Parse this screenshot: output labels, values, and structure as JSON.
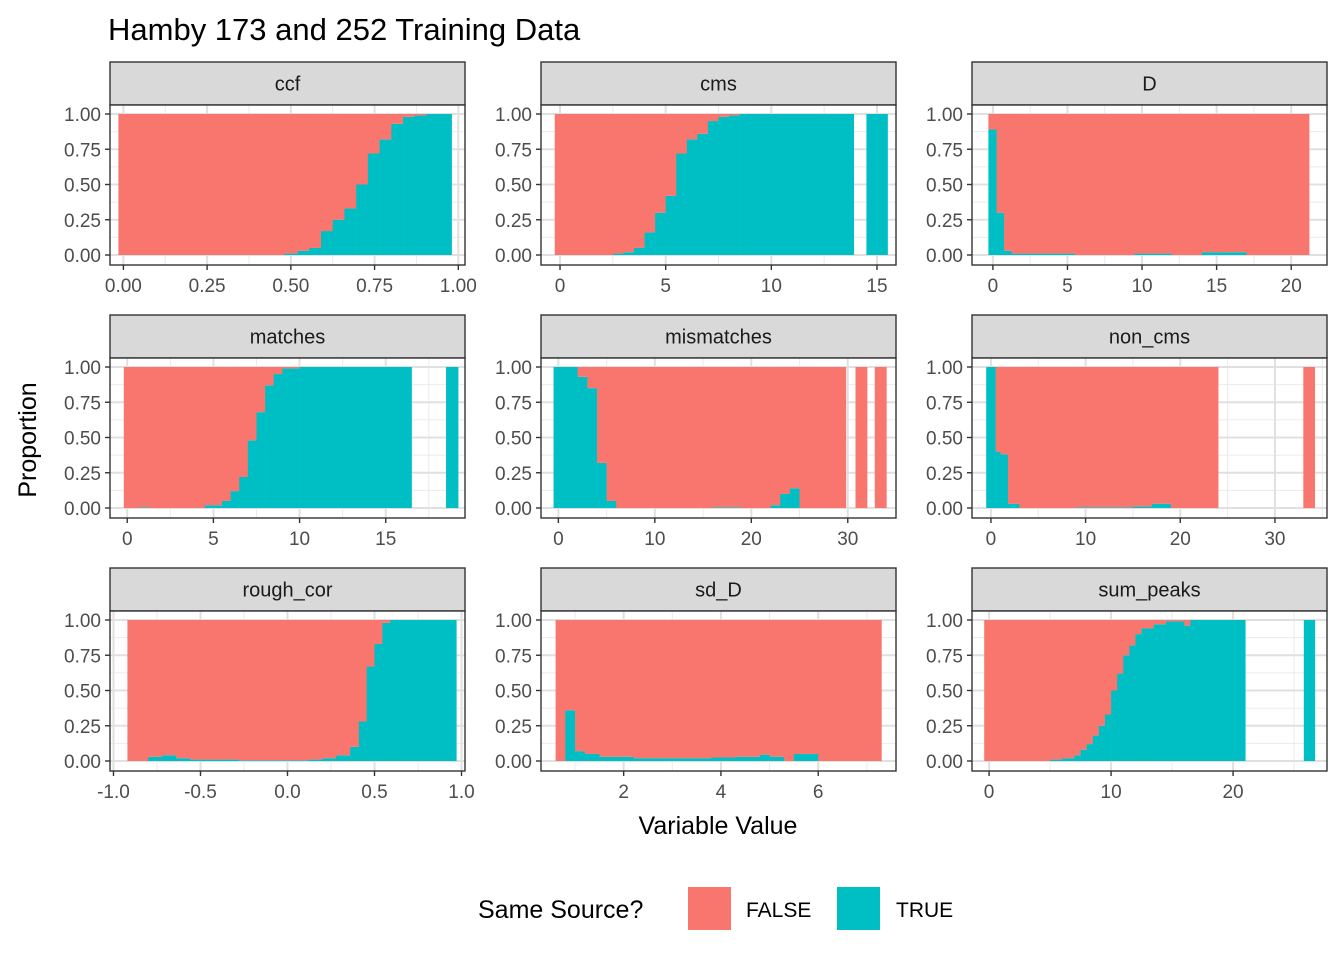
{
  "chart_data": {
    "type": "bar",
    "subtype": "stacked-proportion-histogram-faceted",
    "title": "Hamby 173 and 252 Training Data",
    "xlabel": "Variable Value",
    "ylabel": "Proportion",
    "yticks": [
      "0.00",
      "0.25",
      "0.50",
      "0.75",
      "1.00"
    ],
    "ylim": [
      0,
      1
    ],
    "grid": true,
    "legend": {
      "title": "Same Source?",
      "position": "bottom",
      "entries": [
        {
          "name": "FALSE",
          "color": "#F8766D"
        },
        {
          "name": "TRUE",
          "color": "#00BFC4"
        }
      ]
    },
    "series_colors": {
      "FALSE": "#F8766D",
      "TRUE": "#00BFC4"
    },
    "note_values": "values are the TRUE proportion per bin; FALSE = 1 - TRUE; bins listed as [start, end, true_proportion]",
    "facets": [
      {
        "name": "ccf",
        "xlim": [
          -0.04,
          1.02
        ],
        "xticks": [
          0,
          0.25,
          0.5,
          0.75,
          1.0
        ],
        "xtick_labels": [
          "0.00",
          "0.25",
          "0.50",
          "0.75",
          "1.00"
        ],
        "bins": [
          [
            -0.015,
            0.48,
            0.0
          ],
          [
            0.48,
            0.52,
            0.01
          ],
          [
            0.52,
            0.555,
            0.03
          ],
          [
            0.555,
            0.59,
            0.05
          ],
          [
            0.59,
            0.625,
            0.17
          ],
          [
            0.625,
            0.66,
            0.25
          ],
          [
            0.66,
            0.695,
            0.33
          ],
          [
            0.695,
            0.73,
            0.5
          ],
          [
            0.73,
            0.765,
            0.72
          ],
          [
            0.765,
            0.8,
            0.82
          ],
          [
            0.8,
            0.835,
            0.93
          ],
          [
            0.835,
            0.87,
            0.98
          ],
          [
            0.87,
            0.905,
            0.99
          ],
          [
            0.905,
            0.98,
            1.0
          ]
        ]
      },
      {
        "name": "cms",
        "xlim": [
          -0.9,
          15.9
        ],
        "xticks": [
          0,
          5,
          10,
          15
        ],
        "xtick_labels": [
          "0",
          "5",
          "10",
          "15"
        ],
        "bins": [
          [
            -0.25,
            2.5,
            0.0
          ],
          [
            2.5,
            3.0,
            0.01
          ],
          [
            3.0,
            3.5,
            0.02
          ],
          [
            3.5,
            4.0,
            0.05
          ],
          [
            4.0,
            4.5,
            0.16
          ],
          [
            4.5,
            5.0,
            0.3
          ],
          [
            5.0,
            5.5,
            0.42
          ],
          [
            5.5,
            6.0,
            0.72
          ],
          [
            6.0,
            6.5,
            0.82
          ],
          [
            6.5,
            7.0,
            0.86
          ],
          [
            7.0,
            7.5,
            0.95
          ],
          [
            7.5,
            8.0,
            0.98
          ],
          [
            8.0,
            8.5,
            0.99
          ],
          [
            8.5,
            13.9,
            1.0
          ],
          [
            14.5,
            15.5,
            1.0
          ]
        ]
      },
      {
        "name": "D",
        "xlim": [
          -1.4,
          22.4
        ],
        "xticks": [
          0,
          5,
          10,
          15,
          20
        ],
        "xtick_labels": [
          "0",
          "5",
          "10",
          "15",
          "20"
        ],
        "bins": [
          [
            -0.3,
            0.25,
            0.89
          ],
          [
            0.25,
            0.75,
            0.3
          ],
          [
            0.75,
            1.25,
            0.03
          ],
          [
            1.25,
            5.5,
            0.01
          ],
          [
            5.5,
            9.5,
            0.0
          ],
          [
            9.5,
            12.0,
            0.01
          ],
          [
            12.0,
            14.0,
            0.0
          ],
          [
            14.0,
            17.0,
            0.02
          ],
          [
            17.0,
            21.2,
            0.0
          ]
        ]
      },
      {
        "name": "matches",
        "xlim": [
          -1.0,
          19.6
        ],
        "xticks": [
          0,
          5,
          10,
          15
        ],
        "xtick_labels": [
          "0",
          "5",
          "10",
          "15"
        ],
        "bins": [
          [
            -0.2,
            0.7,
            0.0
          ],
          [
            0.7,
            1.3,
            0.005
          ],
          [
            1.3,
            4.5,
            0.0
          ],
          [
            4.5,
            5.5,
            0.02
          ],
          [
            5.5,
            6.0,
            0.05
          ],
          [
            6.0,
            6.5,
            0.12
          ],
          [
            6.5,
            7.0,
            0.22
          ],
          [
            7.0,
            7.5,
            0.48
          ],
          [
            7.5,
            8.0,
            0.68
          ],
          [
            8.0,
            8.5,
            0.87
          ],
          [
            8.5,
            9.0,
            0.95
          ],
          [
            9.0,
            10.0,
            0.99
          ],
          [
            10.0,
            16.5,
            1.0
          ],
          [
            18.5,
            19.2,
            1.0
          ]
        ]
      },
      {
        "name": "mismatches",
        "xlim": [
          -1.8,
          35.0
        ],
        "xticks": [
          0,
          10,
          20,
          30
        ],
        "xtick_labels": [
          "0",
          "10",
          "20",
          "30"
        ],
        "bins": [
          [
            -0.5,
            2.0,
            1.0
          ],
          [
            2.0,
            3.0,
            0.93
          ],
          [
            3.0,
            4.0,
            0.85
          ],
          [
            4.0,
            5.0,
            0.32
          ],
          [
            5.0,
            6.0,
            0.05
          ],
          [
            6.0,
            16.0,
            0.0
          ],
          [
            16.0,
            19.0,
            0.005
          ],
          [
            19.0,
            22.0,
            0.0
          ],
          [
            22.0,
            23.0,
            0.02
          ],
          [
            23.0,
            24.0,
            0.1
          ],
          [
            24.0,
            25.0,
            0.14
          ],
          [
            25.0,
            29.8,
            0.0
          ],
          [
            30.8,
            32.0,
            0.0
          ],
          [
            32.8,
            34.0,
            0.0
          ]
        ]
      },
      {
        "name": "non_cms",
        "xlim": [
          -2.0,
          35.5
        ],
        "xticks": [
          0,
          10,
          20,
          30
        ],
        "xtick_labels": [
          "0",
          "10",
          "20",
          "30"
        ],
        "bins": [
          [
            -0.5,
            0.5,
            1.0
          ],
          [
            0.5,
            1.0,
            0.4
          ],
          [
            1.0,
            1.8,
            0.38
          ],
          [
            1.8,
            3.0,
            0.03
          ],
          [
            3.0,
            9.0,
            0.0
          ],
          [
            9.0,
            15.0,
            0.005
          ],
          [
            15.0,
            17.0,
            0.01
          ],
          [
            17.0,
            19.0,
            0.03
          ],
          [
            19.0,
            24.0,
            0.0
          ],
          [
            33.0,
            34.2,
            0.0
          ]
        ]
      },
      {
        "name": "rough_cor",
        "xlim": [
          -1.02,
          1.02
        ],
        "xticks": [
          -1.0,
          -0.5,
          0.0,
          0.5,
          1.0
        ],
        "xtick_labels": [
          "-1.0",
          "-0.5",
          "0.0",
          "0.5",
          "1.0"
        ],
        "bins": [
          [
            -0.92,
            -0.8,
            0.0
          ],
          [
            -0.8,
            -0.72,
            0.03
          ],
          [
            -0.72,
            -0.64,
            0.04
          ],
          [
            -0.64,
            -0.56,
            0.02
          ],
          [
            -0.56,
            -0.48,
            0.01
          ],
          [
            -0.48,
            -0.28,
            0.01
          ],
          [
            -0.28,
            0.12,
            0.005
          ],
          [
            0.12,
            0.2,
            0.01
          ],
          [
            0.2,
            0.28,
            0.02
          ],
          [
            0.28,
            0.36,
            0.04
          ],
          [
            0.36,
            0.41,
            0.1
          ],
          [
            0.41,
            0.455,
            0.28
          ],
          [
            0.455,
            0.5,
            0.67
          ],
          [
            0.5,
            0.545,
            0.83
          ],
          [
            0.545,
            0.59,
            0.98
          ],
          [
            0.59,
            0.97,
            1.0
          ]
        ]
      },
      {
        "name": "sd_D",
        "xlim": [
          0.3,
          7.6
        ],
        "xticks": [
          2,
          4,
          6
        ],
        "xtick_labels": [
          "2",
          "4",
          "6"
        ],
        "bins": [
          [
            0.6,
            0.8,
            0.0
          ],
          [
            0.8,
            1.0,
            0.36
          ],
          [
            1.0,
            1.2,
            0.07
          ],
          [
            1.2,
            1.5,
            0.05
          ],
          [
            1.5,
            2.2,
            0.03
          ],
          [
            2.2,
            3.8,
            0.02
          ],
          [
            3.8,
            4.3,
            0.025
          ],
          [
            4.3,
            4.8,
            0.03
          ],
          [
            4.8,
            5.0,
            0.045
          ],
          [
            5.0,
            5.3,
            0.03
          ],
          [
            5.3,
            5.5,
            0.0
          ],
          [
            5.5,
            6.0,
            0.05
          ],
          [
            6.0,
            7.3,
            0.0
          ]
        ]
      },
      {
        "name": "sum_peaks",
        "xlim": [
          -1.4,
          27.7
        ],
        "xticks": [
          0,
          10,
          20
        ],
        "xtick_labels": [
          "0",
          "10",
          "20"
        ],
        "bins": [
          [
            -0.4,
            5.0,
            0.0
          ],
          [
            5.0,
            6.0,
            0.01
          ],
          [
            6.0,
            7.0,
            0.02
          ],
          [
            7.0,
            7.5,
            0.04
          ],
          [
            7.5,
            8.0,
            0.08
          ],
          [
            8.0,
            8.5,
            0.12
          ],
          [
            8.5,
            9.0,
            0.18
          ],
          [
            9.0,
            9.5,
            0.25
          ],
          [
            9.5,
            10.0,
            0.33
          ],
          [
            10.0,
            10.5,
            0.5
          ],
          [
            10.5,
            11.0,
            0.62
          ],
          [
            11.0,
            11.5,
            0.75
          ],
          [
            11.5,
            12.0,
            0.82
          ],
          [
            12.0,
            12.5,
            0.9
          ],
          [
            12.5,
            13.5,
            0.94
          ],
          [
            13.5,
            14.5,
            0.97
          ],
          [
            14.5,
            16.0,
            0.99
          ],
          [
            16.0,
            16.5,
            0.96
          ],
          [
            16.5,
            21.0,
            1.0
          ],
          [
            25.8,
            26.7,
            1.0
          ]
        ]
      }
    ]
  }
}
